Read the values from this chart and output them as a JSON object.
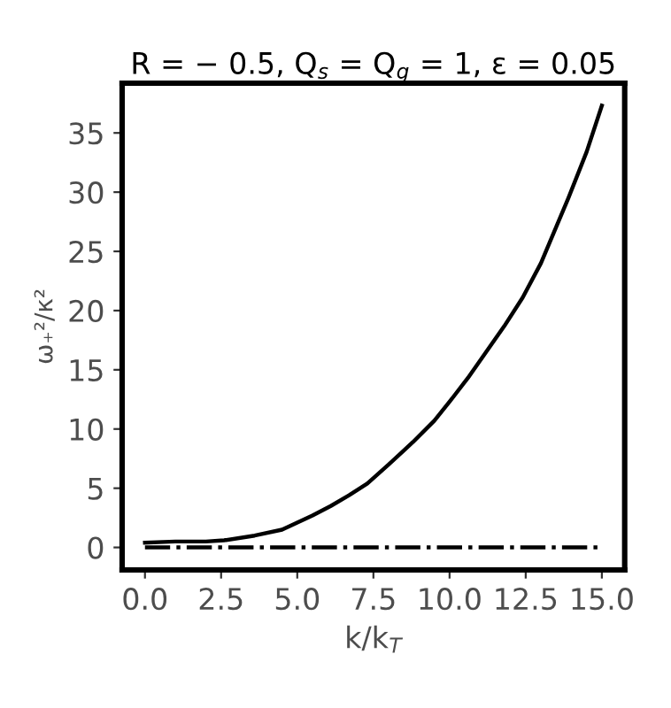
{
  "chart_data": {
    "type": "line",
    "title": "R = − 0.5, Q$_{s}$ = Q$_{g}$ = 1, ε = 0.05",
    "xlabel": "k/k$_{T}$",
    "ylabel": "ω₊²/κ²",
    "xlim": [
      -0.75,
      15.75
    ],
    "ylim": [
      -1.9,
      39.2
    ],
    "xticks": [
      {
        "value": 0,
        "label": "0.0"
      },
      2.5,
      {
        "value": 5,
        "label": "5.0"
      },
      7.5,
      {
        "value": 10,
        "label": "10.0"
      },
      12.5,
      {
        "value": 15,
        "label": "15.0"
      }
    ],
    "yticks": [
      0,
      5,
      10,
      15,
      20,
      25,
      30,
      35
    ],
    "grid": false,
    "legend": false,
    "series": [
      {
        "color": "#000000",
        "line_style": "solid",
        "x": [
          0,
          1,
          2,
          2.6,
          3.6,
          4.5,
          5,
          5.5,
          6.1,
          6.7,
          7.3,
          8,
          8.8,
          9.5,
          10,
          10.6,
          11.2,
          11.8,
          12.4,
          13,
          13.9,
          14.5,
          15
        ],
        "values": [
          0.4,
          0.5,
          0.5,
          0.6,
          1.0,
          1.5,
          2.1,
          2.7,
          3.5,
          4.4,
          5.4,
          7.0,
          8.9,
          10.7,
          12.3,
          14.3,
          16.5,
          18.7,
          21.1,
          24.0,
          29.5,
          33.4,
          37.3
        ]
      },
      {
        "color": "#000000",
        "line_style": "dashdot",
        "x": [
          0,
          15
        ],
        "values": [
          0,
          0
        ]
      }
    ]
  }
}
